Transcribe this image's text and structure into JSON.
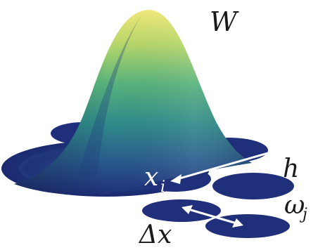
{
  "labels": {
    "kernel": "W",
    "particle_i_base": "x",
    "particle_i_sub": "i",
    "smoothing_length": "h",
    "particle_j_base": "ω",
    "particle_j_sub": "j",
    "spacing": "Δx"
  },
  "colors": {
    "disc": "#1f2f7a",
    "disc_edge": "#15225e",
    "arrow": "#ffffff",
    "kernel_top": "#f2e871",
    "kernel_mid": "#3aa38a",
    "kernel_low": "#2a4a8c",
    "kernel_base": "#1f2f7a"
  }
}
